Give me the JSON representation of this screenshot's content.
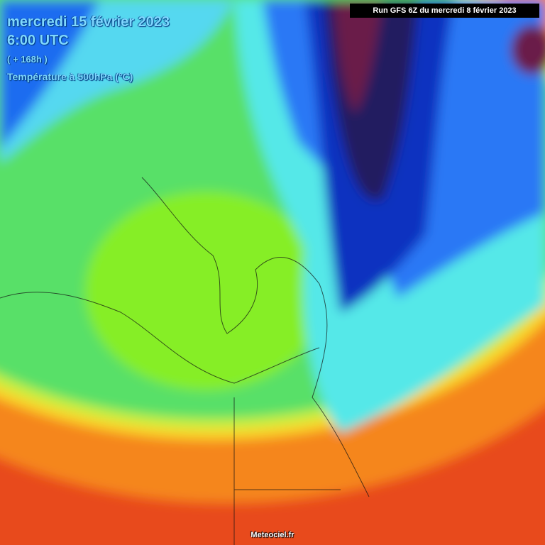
{
  "header": {
    "date": "mercredi 15 février 2023",
    "time": "6:00 UTC",
    "lead": "( + 168h )",
    "variable": "Température à 500hPa (°C)"
  },
  "run_info": "Run GFS 6Z du mercredi 8 février 2023",
  "credit": "Meteociel.fr"
}
